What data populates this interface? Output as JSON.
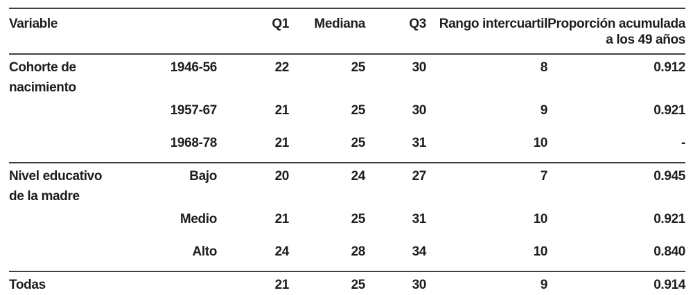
{
  "page": {
    "background": "#ffffff",
    "text_color": "#1d1d1f",
    "rule_color": "#414143"
  },
  "table": {
    "header": {
      "variable": "Variable",
      "q1": "Q1",
      "mediana": "Mediana",
      "q3": "Q3",
      "rango": "Rango intercuartil",
      "proporcion_line1": "Proporción acumulada",
      "proporcion_line2": "a los 49 años"
    },
    "sections": [
      {
        "label_line1": "Cohorte de",
        "label_line2": "nacimiento",
        "rows": [
          {
            "category": "1946-56",
            "q1": "22",
            "mediana": "25",
            "q3": "30",
            "rango": "8",
            "proporcion": "0.912"
          },
          {
            "category": "1957-67",
            "q1": "21",
            "mediana": "25",
            "q3": "30",
            "rango": "9",
            "proporcion": "0.921"
          },
          {
            "category": "1968-78",
            "q1": "21",
            "mediana": "25",
            "q3": "31",
            "rango": "10",
            "proporcion": "-"
          }
        ]
      },
      {
        "label_line1": "Nivel educativo",
        "label_line2": "de la madre",
        "rows": [
          {
            "category": "Bajo",
            "q1": "20",
            "mediana": "24",
            "q3": "27",
            "rango": "7",
            "proporcion": "0.945"
          },
          {
            "category": "Medio",
            "q1": "21",
            "mediana": "25",
            "q3": "31",
            "rango": "10",
            "proporcion": "0.921"
          },
          {
            "category": "Alto",
            "q1": "24",
            "mediana": "28",
            "q3": "34",
            "rango": "10",
            "proporcion": "0.840"
          }
        ]
      }
    ],
    "footer": {
      "label": "Todas",
      "q1": "21",
      "mediana": "25",
      "q3": "30",
      "rango": "9",
      "proporcion": "0.914"
    }
  },
  "chart_data": {
    "type": "table",
    "columns": [
      "Variable",
      "",
      "Q1",
      "Mediana",
      "Q3",
      "Rango intercuartil",
      "Proporción acumulada a los 49 años"
    ],
    "rows": [
      [
        "Cohorte de nacimiento",
        "1946-56",
        22,
        25,
        30,
        8,
        0.912
      ],
      [
        "",
        "1957-67",
        21,
        25,
        30,
        9,
        0.921
      ],
      [
        "",
        "1968-78",
        21,
        25,
        31,
        10,
        "-"
      ],
      [
        "Nivel educativo de la madre",
        "Bajo",
        20,
        24,
        27,
        7,
        0.945
      ],
      [
        "",
        "Medio",
        21,
        25,
        31,
        10,
        0.921
      ],
      [
        "",
        "Alto",
        24,
        28,
        34,
        10,
        0.84
      ],
      [
        "Todas",
        "",
        21,
        25,
        30,
        9,
        0.914
      ]
    ]
  }
}
